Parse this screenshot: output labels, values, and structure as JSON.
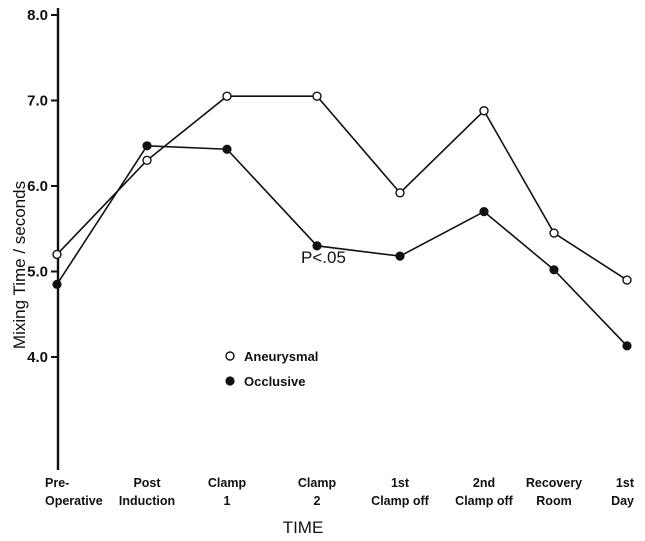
{
  "chart_data": {
    "type": "line",
    "title": "",
    "xlabel": "TIME",
    "ylabel": "Mixing Time / seconds",
    "ylim": [
      3.0,
      8.5
    ],
    "yticks": [
      "4.0",
      "5.0",
      "6.0",
      "7.0",
      "8.0"
    ],
    "ytick_values": [
      4.0,
      5.0,
      6.0,
      7.0,
      8.0
    ],
    "categories": [
      [
        "Pre-",
        "Operative"
      ],
      [
        "Post",
        "Induction"
      ],
      [
        "Clamp",
        "1"
      ],
      [
        "Clamp",
        "2"
      ],
      [
        "1st",
        "Clamp off"
      ],
      [
        "2nd",
        "Clamp off"
      ],
      [
        "Recovery",
        "Room"
      ],
      [
        "1st",
        "Day"
      ]
    ],
    "series": [
      {
        "name": "Aneurysmal",
        "marker": "open-circle",
        "values": [
          5.2,
          6.3,
          7.05,
          7.05,
          5.92,
          6.88,
          5.45,
          4.9
        ]
      },
      {
        "name": "Occlusive",
        "marker": "filled-circle",
        "values": [
          4.85,
          6.47,
          6.43,
          5.3,
          5.18,
          5.7,
          5.02,
          4.13
        ]
      }
    ],
    "annotations": [
      {
        "text": "P<.05"
      }
    ],
    "grid": false,
    "legend": "center-left"
  }
}
